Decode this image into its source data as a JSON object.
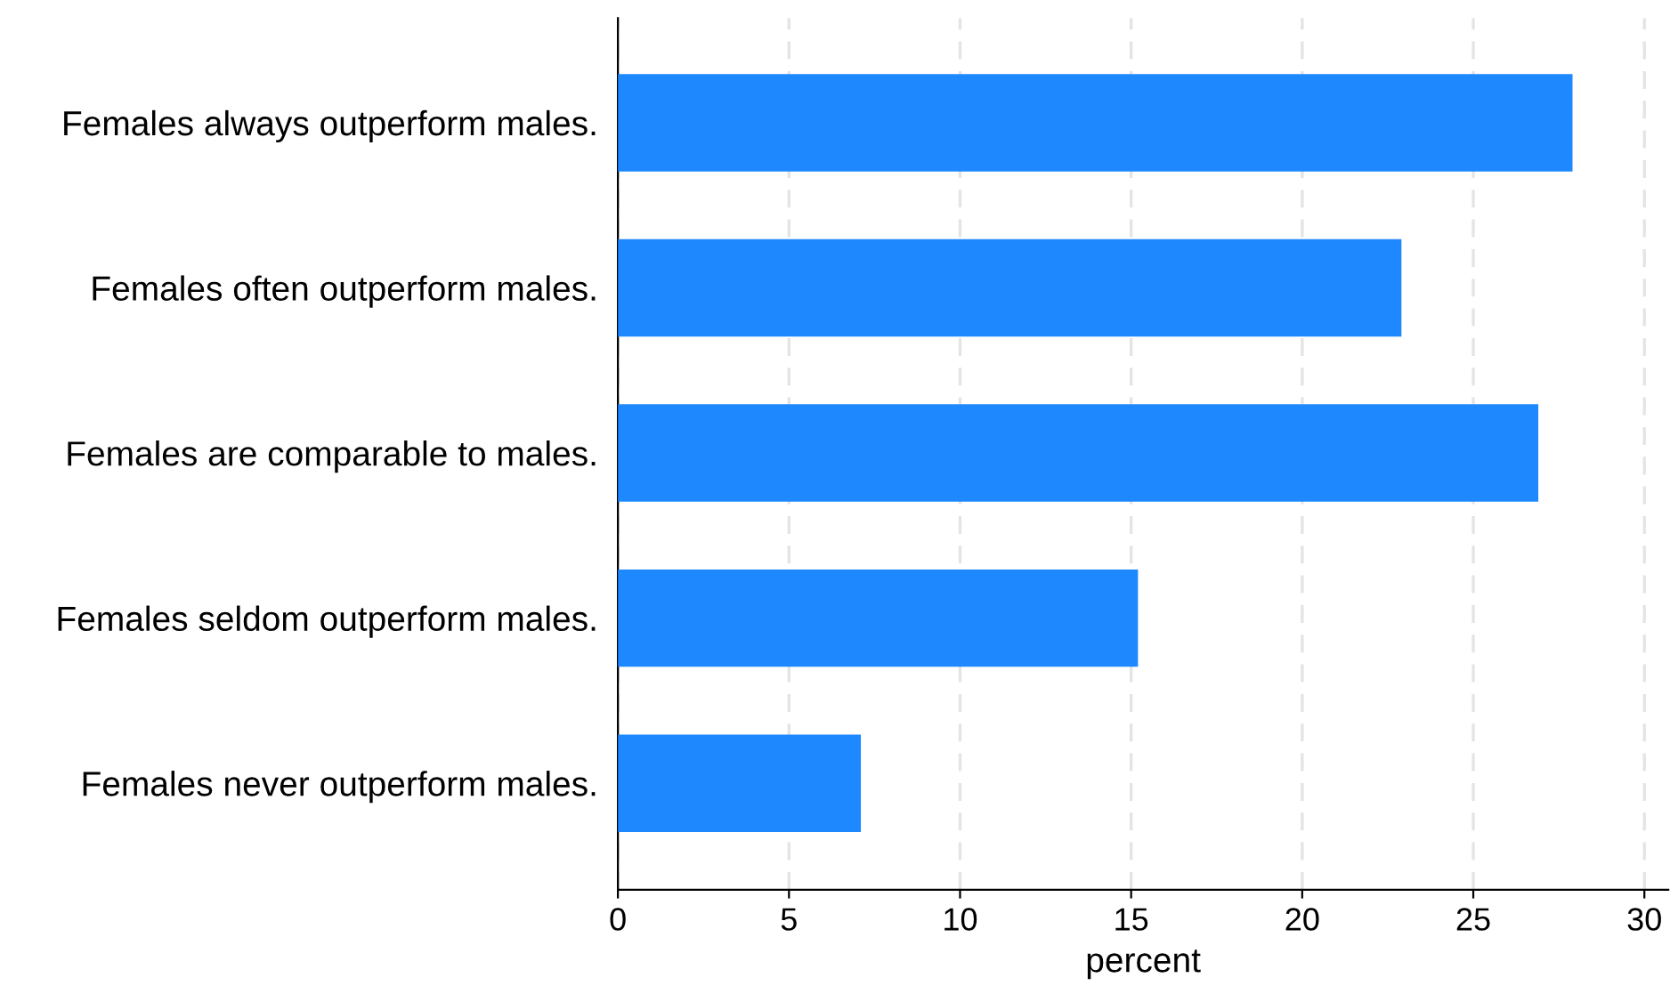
{
  "chart_data": {
    "type": "bar",
    "orientation": "horizontal",
    "xlabel": "percent",
    "categories": [
      "Females always outperform males.",
      "Females often outperform males.",
      "Females are comparable to males.",
      "Females seldom outperform males.",
      "Females never outperform males."
    ],
    "values": [
      27.9,
      22.9,
      26.9,
      15.2,
      7.1
    ],
    "color": "#1e88fe",
    "xlim": [
      0,
      30.7
    ],
    "xticks": [
      0,
      5,
      10,
      15,
      20,
      25,
      30
    ],
    "grid": "x",
    "legend": false
  }
}
